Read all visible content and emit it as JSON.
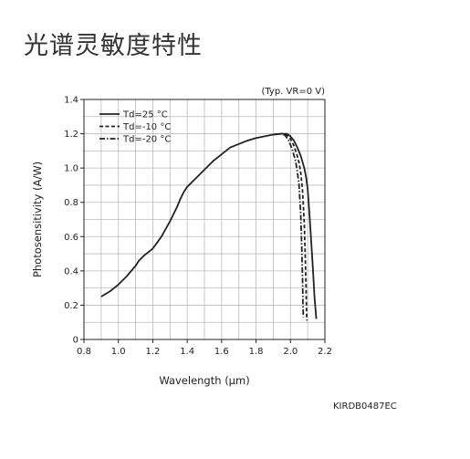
{
  "page": {
    "title": "光谱灵敏度特性",
    "doc_code": "KIRDB0487EC"
  },
  "chart_data": {
    "type": "line",
    "title": "",
    "condition_note": "(Typ. VR=0 V)",
    "xlabel": "Wavelength (μm)",
    "ylabel": "Photosensitivity (A/W)",
    "xlim": [
      0.8,
      2.2
    ],
    "ylim": [
      0,
      1.4
    ],
    "x_ticks": [
      "0.8",
      "1.0",
      "1.2",
      "1.4",
      "1.6",
      "1.8",
      "2.0",
      "2.2"
    ],
    "y_ticks": [
      "0",
      "0.2",
      "0.4",
      "0.6",
      "0.8",
      "1.0",
      "1.2",
      "1.4"
    ],
    "x_tick_values": [
      0.8,
      1.0,
      1.2,
      1.4,
      1.6,
      1.8,
      2.0,
      2.2
    ],
    "y_tick_values": [
      0,
      0.2,
      0.4,
      0.6,
      0.8,
      1.0,
      1.2,
      1.4
    ],
    "grid": true,
    "legend_position": "top-left",
    "line_color": "#222222",
    "grid_color": "#bbbbbb",
    "series": [
      {
        "name": "Td=25 °C",
        "style": "solid",
        "x": [
          0.9,
          0.95,
          1.0,
          1.05,
          1.1,
          1.12,
          1.15,
          1.2,
          1.25,
          1.3,
          1.34,
          1.36,
          1.38,
          1.4,
          1.45,
          1.5,
          1.55,
          1.6,
          1.65,
          1.7,
          1.75,
          1.8,
          1.85,
          1.9,
          1.95,
          1.98,
          2.0,
          2.02,
          2.04,
          2.06,
          2.08,
          2.09,
          2.1,
          2.11,
          2.12,
          2.13,
          2.14,
          2.15
        ],
        "y": [
          0.25,
          0.28,
          0.32,
          0.37,
          0.43,
          0.46,
          0.49,
          0.53,
          0.6,
          0.69,
          0.77,
          0.82,
          0.86,
          0.89,
          0.94,
          0.99,
          1.04,
          1.08,
          1.12,
          1.14,
          1.16,
          1.175,
          1.185,
          1.195,
          1.2,
          1.2,
          1.185,
          1.16,
          1.12,
          1.07,
          1.0,
          0.95,
          0.88,
          0.74,
          0.58,
          0.42,
          0.24,
          0.12
        ]
      },
      {
        "name": "Td=-10 °C",
        "style": "dashed",
        "x": [
          1.9,
          1.93,
          1.96,
          1.98,
          2.0,
          2.02,
          2.04,
          2.05,
          2.06,
          2.07,
          2.08,
          2.085,
          2.09,
          2.093,
          2.095
        ],
        "y": [
          1.195,
          1.2,
          1.2,
          1.19,
          1.17,
          1.13,
          1.07,
          1.03,
          0.97,
          0.87,
          0.68,
          0.52,
          0.32,
          0.18,
          0.11
        ]
      },
      {
        "name": "Td=-20 °C",
        "style": "dashdot",
        "x": [
          1.9,
          1.93,
          1.95,
          1.97,
          1.99,
          2.01,
          2.03,
          2.04,
          2.05,
          2.06,
          2.065,
          2.07,
          2.072,
          2.075
        ],
        "y": [
          1.195,
          1.2,
          1.2,
          1.19,
          1.16,
          1.11,
          1.04,
          0.98,
          0.9,
          0.72,
          0.56,
          0.36,
          0.22,
          0.13
        ]
      }
    ]
  }
}
